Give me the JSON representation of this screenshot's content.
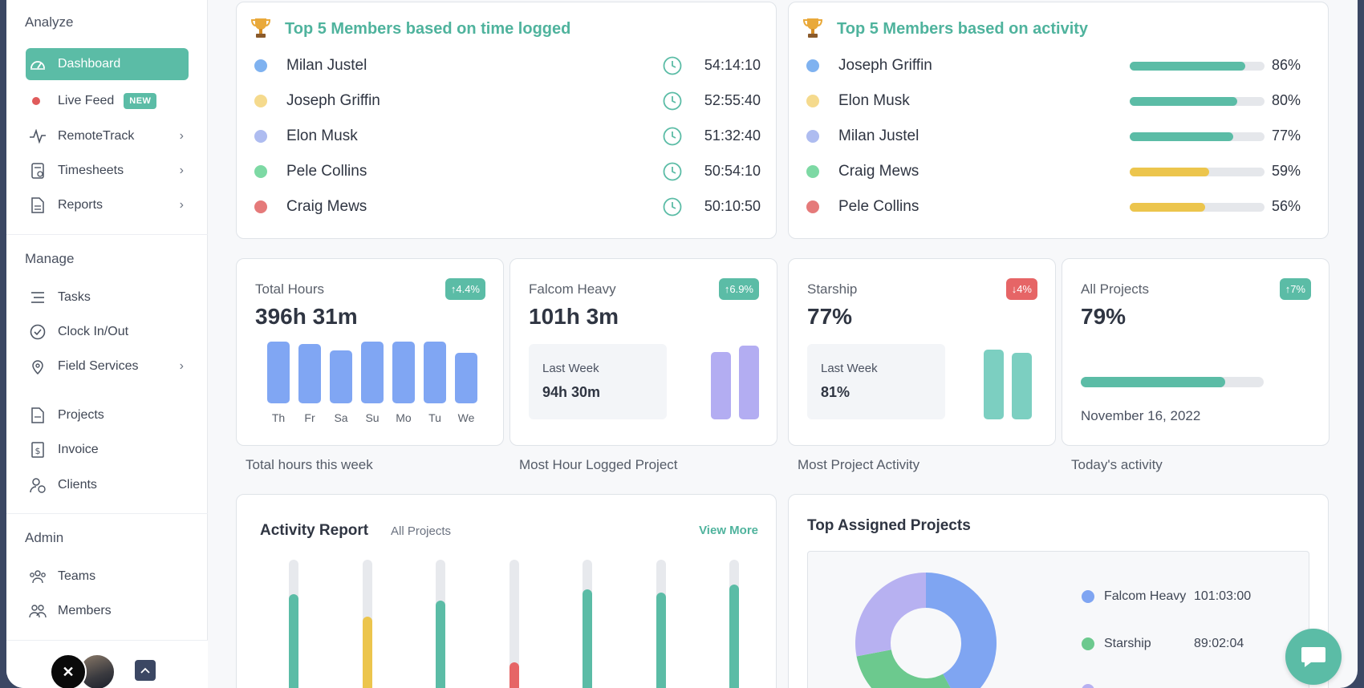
{
  "sidebar": {
    "analyze_title": "Analyze",
    "manage_title": "Manage",
    "admin_title": "Admin",
    "items": {
      "dashboard": "Dashboard",
      "live_feed": "Live Feed",
      "live_feed_badge": "NEW",
      "remotetrack": "RemoteTrack",
      "timesheets": "Timesheets",
      "reports": "Reports",
      "tasks": "Tasks",
      "clock": "Clock In/Out",
      "field_services": "Field Services",
      "projects": "Projects",
      "invoice": "Invoice",
      "clients": "Clients",
      "teams": "Teams",
      "members": "Members"
    }
  },
  "top_time": {
    "title": "Top 5 Members based on time logged",
    "rows": [
      {
        "name": "Milan Justel",
        "time": "54:14:10",
        "color": "#7fb2f0"
      },
      {
        "name": "Joseph Griffin",
        "time": "52:55:40",
        "color": "#f5da8d"
      },
      {
        "name": "Elon Musk",
        "time": "51:32:40",
        "color": "#aebcf0"
      },
      {
        "name": "Pele Collins",
        "time": "50:54:10",
        "color": "#7dd9a4"
      },
      {
        "name": "Craig Mews",
        "time": "50:10:50",
        "color": "#e57a7a"
      }
    ]
  },
  "top_activity": {
    "title": "Top 5 Members based on activity",
    "rows": [
      {
        "name": "Joseph Griffin",
        "pct": "86%",
        "value": 0.86,
        "color": "#7fb2f0",
        "bar": "#5bbca6"
      },
      {
        "name": "Elon Musk",
        "pct": "80%",
        "value": 0.8,
        "color": "#f5da8d",
        "bar": "#5bbca6"
      },
      {
        "name": "Milan Justel",
        "pct": "77%",
        "value": 0.77,
        "color": "#aebcf0",
        "bar": "#5bbca6"
      },
      {
        "name": "Craig Mews",
        "pct": "59%",
        "value": 0.59,
        "color": "#7dd9a4",
        "bar": "#ecc54d"
      },
      {
        "name": "Pele Collins",
        "pct": "56%",
        "value": 0.56,
        "color": "#e57a7a",
        "bar": "#ecc54d"
      }
    ]
  },
  "stats": {
    "total_hours": {
      "label": "Total Hours",
      "value": "396h 31m",
      "chip": "↑4.4%",
      "caption": "Total hours this week",
      "days": [
        "Th",
        "Fr",
        "Sa",
        "Su",
        "Mo",
        "Tu",
        "We"
      ],
      "bars": [
        0.92,
        0.88,
        0.79,
        0.92,
        0.92,
        0.92,
        0.75
      ]
    },
    "falcom": {
      "label": "Falcom Heavy",
      "value": "101h 3m",
      "chip": "↑6.9%",
      "lw_label": "Last Week",
      "lw_value": "94h 30m",
      "caption": "Most Hour Logged Project",
      "bars": [
        0.91,
        1.0
      ]
    },
    "starship": {
      "label": "Starship",
      "value": "77%",
      "chip": "↓4%",
      "lw_label": "Last Week",
      "lw_value": "81%",
      "caption": "Most Project Activity",
      "bars": [
        0.95,
        0.9
      ]
    },
    "all_projects": {
      "label": "All Projects",
      "value": "79%",
      "chip": "↑7%",
      "progress": 0.79,
      "date": "November 16, 2022",
      "caption": "Today's activity"
    }
  },
  "activity_report": {
    "title": "Activity Report",
    "filter": "All Projects",
    "view_more": "View More",
    "columns": [
      {
        "fill": 0.75,
        "color": "#5bbca6"
      },
      {
        "fill": 0.58,
        "color": "#ecc54d"
      },
      {
        "fill": 0.7,
        "color": "#5bbca6"
      },
      {
        "fill": 0.25,
        "color": "#e66566"
      },
      {
        "fill": 0.78,
        "color": "#5bbca6"
      },
      {
        "fill": 0.76,
        "color": "#5bbca6"
      },
      {
        "fill": 0.82,
        "color": "#5bbca6"
      }
    ]
  },
  "top_assigned": {
    "title": "Top Assigned Projects",
    "legend": [
      {
        "name": "Falcom Heavy",
        "value": "101:03:00",
        "color": "#7fa5f2"
      },
      {
        "name": "Starship",
        "value": "89:02:04",
        "color": "#6cc98e"
      },
      {
        "name": "",
        "value": "",
        "color": "#b7b1f1"
      }
    ],
    "slices": [
      {
        "value": 0.42,
        "color": "#7fa5f2"
      },
      {
        "value": 0.3,
        "color": "#6cc98e"
      },
      {
        "value": 0.28,
        "color": "#b7b1f1"
      }
    ]
  }
}
